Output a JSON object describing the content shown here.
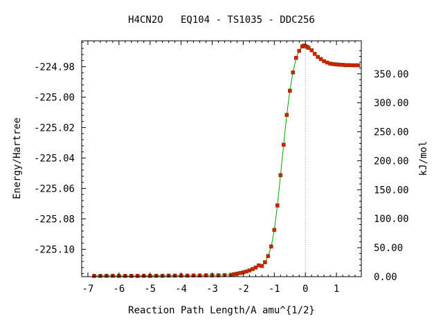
{
  "chart_data": {
    "type": "scatter",
    "title": "H4CN2O   EQ104 - TS1035 - DDC256",
    "xlabel": "Reaction Path Length/A amu^{1/2}",
    "ylabel": "Energy/Hartree",
    "y2label": "kJ/mol",
    "xlim": [
      -7.2,
      1.8
    ],
    "ylim": [
      -225.118,
      -224.963
    ],
    "y2lim": [
      0.0,
      407.0
    ],
    "grid": false,
    "legend": "none",
    "x_ticks": [
      {
        "value": -7,
        "label": "-7"
      },
      {
        "value": -6,
        "label": "-6"
      },
      {
        "value": -5,
        "label": "-5"
      },
      {
        "value": -4,
        "label": "-4"
      },
      {
        "value": -3,
        "label": "-3"
      },
      {
        "value": -2,
        "label": "-2"
      },
      {
        "value": -1,
        "label": "-1"
      },
      {
        "value": 0,
        "label": "0"
      },
      {
        "value": 1,
        "label": "1"
      }
    ],
    "y_ticks": [
      {
        "value": -224.98,
        "label": "-224.98"
      },
      {
        "value": -225.0,
        "label": "-225.00"
      },
      {
        "value": -225.02,
        "label": "-225.02"
      },
      {
        "value": -225.04,
        "label": "-225.04"
      },
      {
        "value": -225.06,
        "label": "-225.06"
      },
      {
        "value": -225.08,
        "label": "-225.08"
      },
      {
        "value": -225.1,
        "label": "-225.10"
      }
    ],
    "y2_ticks": [
      {
        "value": 0,
        "label": "0.00"
      },
      {
        "value": 50,
        "label": "50.00"
      },
      {
        "value": 100,
        "label": "100.00"
      },
      {
        "value": 150,
        "label": "150.00"
      },
      {
        "value": 200,
        "label": "200.00"
      },
      {
        "value": 250,
        "label": "250.00"
      },
      {
        "value": 300,
        "label": "300.00"
      },
      {
        "value": 350,
        "label": "350.00"
      }
    ],
    "ts_marker_x": 0,
    "colors": {
      "line": "#00a000",
      "points": "#d42000",
      "points_stroke": "#7a3a00",
      "ts_line": "#999999",
      "axis": "#000000"
    },
    "series": [
      {
        "x": [
          -6.8,
          -6.6,
          -6.4,
          -6.2,
          -6.0,
          -5.8,
          -5.6,
          -5.4,
          -5.2,
          -5.0,
          -4.8,
          -4.6,
          -4.4,
          -4.2,
          -4.0,
          -3.8,
          -3.6,
          -3.4,
          -3.2,
          -3.0,
          -2.8,
          -2.6,
          -2.4,
          -2.3,
          -2.2,
          -2.1,
          -2.0,
          -1.9,
          -1.8,
          -1.7,
          -1.6,
          -1.5,
          -1.4,
          -1.3,
          -1.2,
          -1.1,
          -1.0,
          -0.9,
          -0.8,
          -0.7,
          -0.6,
          -0.5,
          -0.4,
          -0.3,
          -0.2,
          -0.1,
          -0.05,
          0.0,
          0.05,
          0.1,
          0.2,
          0.3,
          0.4,
          0.5,
          0.6,
          0.7,
          0.8,
          0.9,
          1.0,
          1.1,
          1.2,
          1.3,
          1.4,
          1.5,
          1.6,
          1.7
        ],
        "y": [
          -225.1175,
          -225.1175,
          -225.1174,
          -225.1174,
          -225.1175,
          -225.1175,
          -225.1175,
          -225.1175,
          -225.1174,
          -225.1175,
          -225.1174,
          -225.1174,
          -225.1173,
          -225.1173,
          -225.1173,
          -225.1173,
          -225.1172,
          -225.1172,
          -225.1171,
          -225.1171,
          -225.1171,
          -225.117,
          -225.1168,
          -225.1164,
          -225.116,
          -225.1156,
          -225.1152,
          -225.1146,
          -225.1139,
          -225.113,
          -225.112,
          -225.1106,
          -225.111,
          -225.1085,
          -225.1045,
          -225.0982,
          -225.0873,
          -225.0712,
          -225.0513,
          -225.0313,
          -225.0117,
          -224.9958,
          -224.9838,
          -224.9742,
          -224.9696,
          -224.9667,
          -224.9662,
          -224.9664,
          -224.967,
          -224.9676,
          -224.9692,
          -224.9716,
          -224.9736,
          -224.975,
          -224.9764,
          -224.9773,
          -224.978,
          -224.9783,
          -224.9785,
          -224.9787,
          -224.9788,
          -224.979,
          -224.979,
          -224.9791,
          -224.9791,
          -224.9791
        ]
      }
    ]
  }
}
